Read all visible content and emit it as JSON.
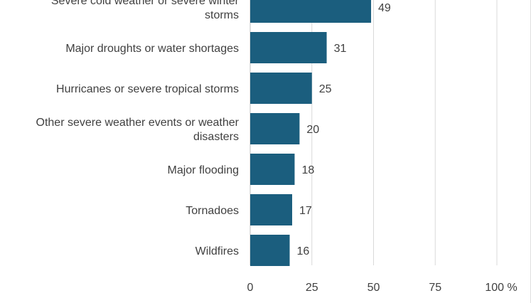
{
  "chart_data": {
    "type": "bar",
    "orientation": "horizontal",
    "categories": [
      "Severe cold weather or severe winter storms",
      "Major droughts or water shortages",
      "Hurricanes or severe tropical storms",
      "Other severe weather events or weather disasters",
      "Major flooding",
      "Tornadoes",
      "Wildfires"
    ],
    "category_lines": [
      [
        "Severe cold weather or severe winter",
        "storms"
      ],
      [
        "Major droughts or water shortages"
      ],
      [
        "Hurricanes or severe tropical storms"
      ],
      [
        "Other severe weather events or weather",
        "disasters"
      ],
      [
        "Major flooding"
      ],
      [
        "Tornadoes"
      ],
      [
        "Wildfires"
      ]
    ],
    "values": [
      49,
      31,
      25,
      20,
      18,
      17,
      16
    ],
    "xlim": [
      0,
      100
    ],
    "ticks": [
      0,
      25,
      50,
      75,
      100
    ],
    "tick_labels": [
      "0",
      "25",
      "50",
      "75",
      "100 %"
    ],
    "grid": true,
    "bar_color": "#1b5e7e"
  }
}
